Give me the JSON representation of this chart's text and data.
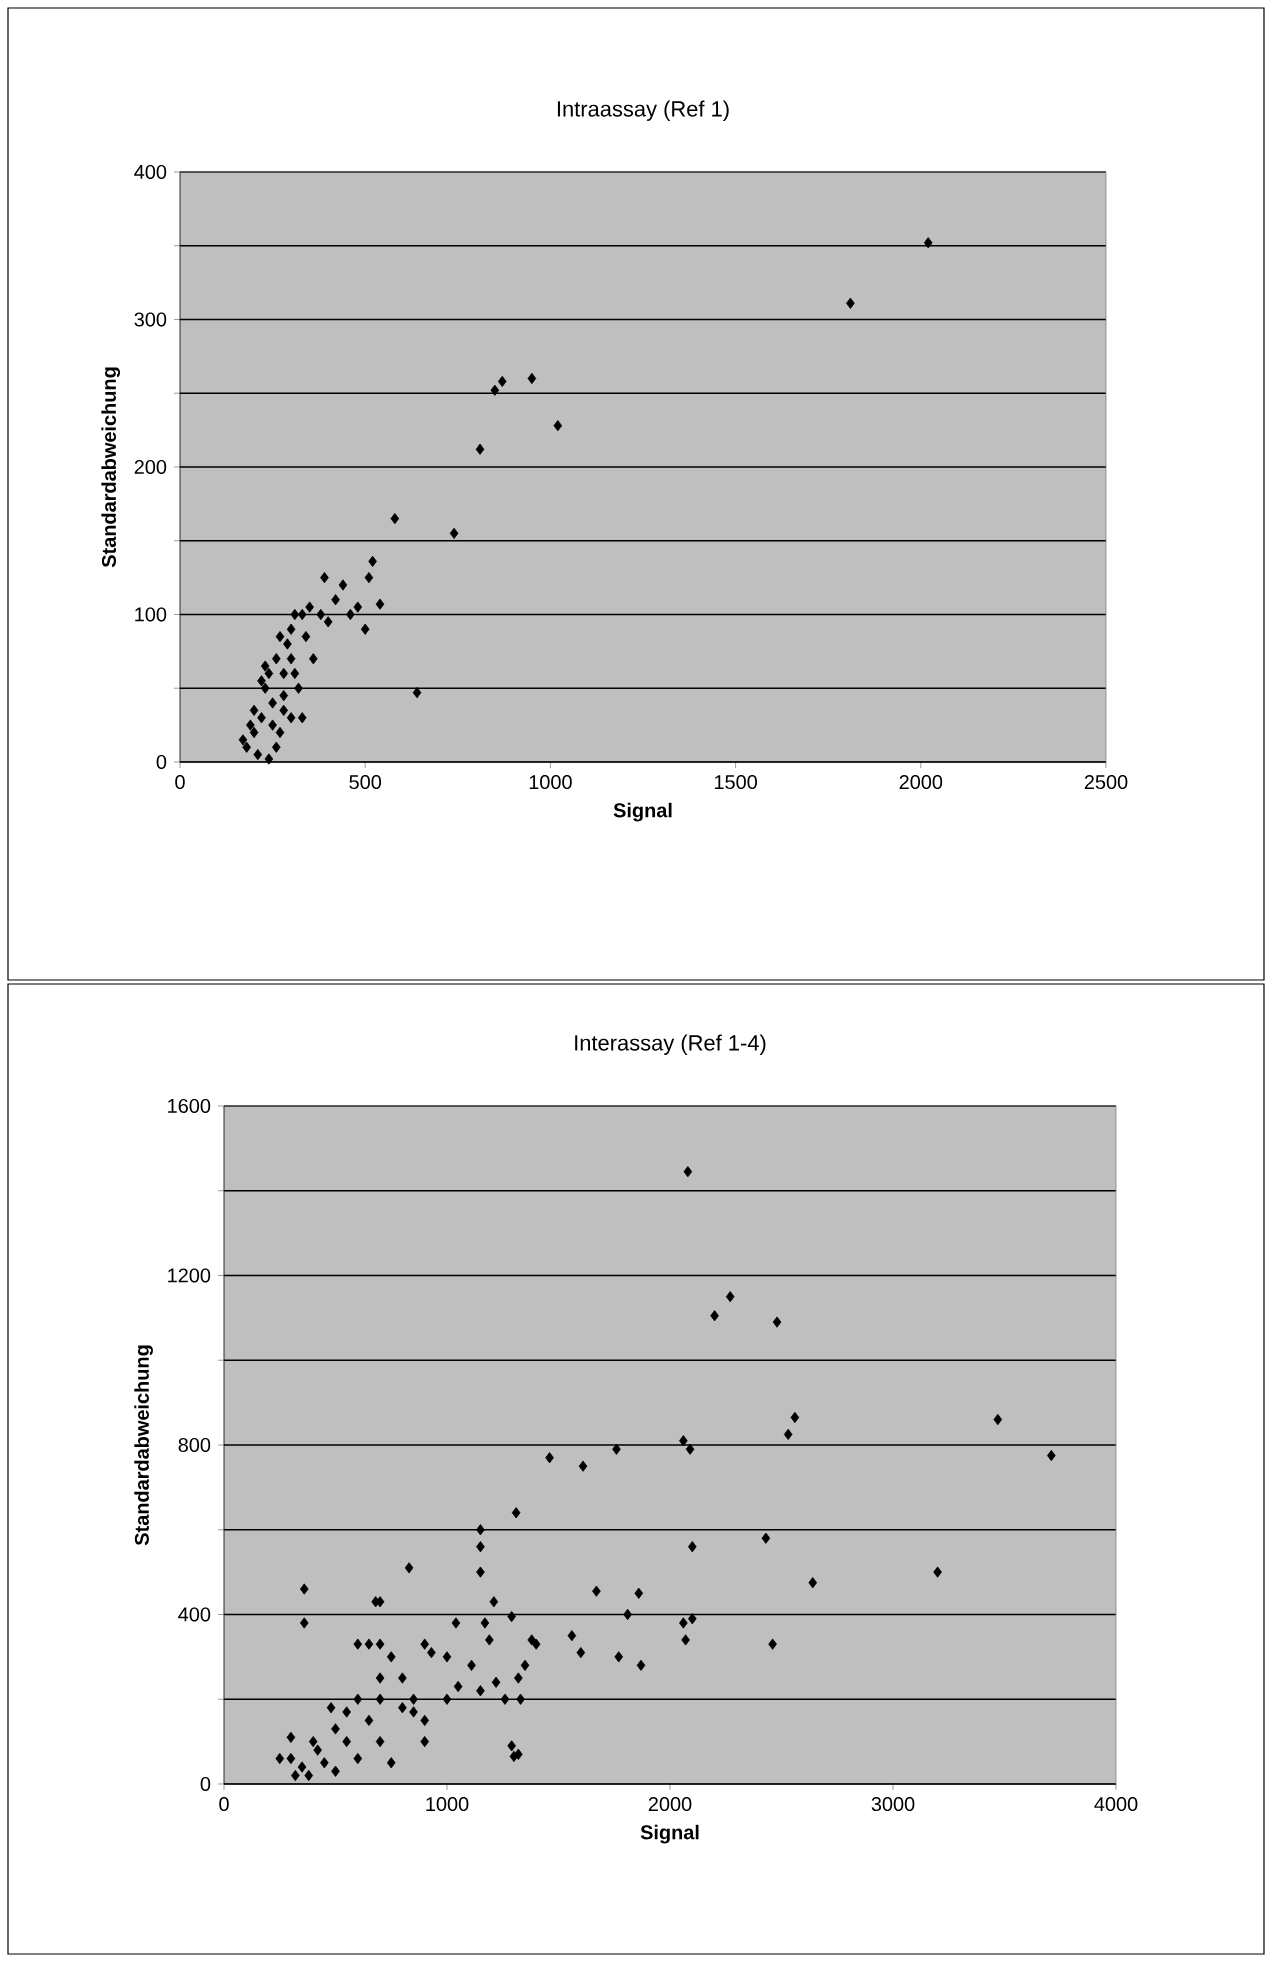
{
  "chart_data": [
    {
      "type": "scatter",
      "title": "Intraassay (Ref 1)",
      "xlabel": "Signal",
      "ylabel": "Standardabweichung",
      "color": "#000000",
      "marker": "diamond",
      "grid": "y",
      "xlim": [
        0,
        2500
      ],
      "ylim": [
        0,
        400
      ],
      "xticks": [
        0,
        500,
        1000,
        1500,
        2000,
        2500
      ],
      "yticks": [
        0,
        {
          "value": 50,
          "label": null
        },
        100,
        {
          "value": 150,
          "label": null
        },
        200,
        {
          "value": 250,
          "label": null
        },
        300,
        {
          "value": 350,
          "label": null
        },
        400
      ],
      "x": [
        2020,
        1810,
        950,
        870,
        850,
        1020,
        810,
        740,
        580,
        640,
        170,
        180,
        200,
        210,
        220,
        230,
        240,
        220,
        250,
        260,
        270,
        280,
        290,
        300,
        310,
        330,
        350,
        320,
        300,
        260,
        240,
        230,
        280,
        270,
        400,
        420,
        440,
        390,
        460,
        480,
        500,
        510,
        520,
        540,
        380,
        360,
        340,
        280,
        300,
        250,
        200,
        190,
        310,
        330
      ],
      "values": [
        352,
        311,
        260,
        258,
        252,
        228,
        212,
        155,
        165,
        47,
        15,
        10,
        20,
        5,
        30,
        50,
        60,
        55,
        40,
        70,
        20,
        60,
        80,
        90,
        100,
        100,
        105,
        50,
        30,
        10,
        2,
        65,
        45,
        85,
        95,
        110,
        120,
        125,
        100,
        105,
        90,
        125,
        136,
        107,
        100,
        70,
        85,
        35,
        70,
        25,
        35,
        25,
        60,
        30
      ]
    },
    {
      "type": "scatter",
      "title": "Interassay (Ref 1-4)",
      "xlabel": "Signal",
      "ylabel": "Standardabweichung",
      "color": "#000000",
      "marker": "diamond",
      "grid": "y",
      "xlim": [
        0,
        4000
      ],
      "ylim": [
        0,
        1600
      ],
      "xticks": [
        0,
        1000,
        2000,
        3000,
        4000
      ],
      "yticks": [
        0,
        {
          "value": 200,
          "label": null
        },
        400,
        {
          "value": 600,
          "label": null
        },
        800,
        {
          "value": 1000,
          "label": null
        },
        1200,
        {
          "value": 1400,
          "label": null
        },
        1600
      ],
      "x": [
        2080,
        2200,
        2270,
        2480,
        3470,
        3710,
        2560,
        2530,
        2060,
        2090,
        1760,
        1460,
        1610,
        2430,
        2100,
        3200,
        2640,
        1310,
        1150,
        1150,
        1150,
        1670,
        1860,
        1210,
        1810,
        2060,
        2100,
        2070,
        2460,
        1870,
        1560,
        1600,
        1770,
        1290,
        1380,
        1400,
        1350,
        1320,
        1220,
        1260,
        1330,
        1290,
        1300,
        1320,
        830,
        680,
        700,
        360,
        360,
        900,
        930,
        600,
        650,
        700,
        1040,
        1000,
        1110,
        1150,
        1190,
        1170,
        800,
        850,
        900,
        1000,
        1050,
        700,
        750,
        550,
        480,
        500,
        600,
        700,
        650,
        800,
        400,
        300,
        350,
        450,
        500,
        300,
        550,
        700,
        750,
        900,
        380,
        420,
        250,
        320,
        600,
        850
      ],
      "values": [
        1445,
        1105,
        1150,
        1090,
        860,
        775,
        865,
        825,
        810,
        790,
        790,
        770,
        750,
        580,
        560,
        500,
        475,
        640,
        600,
        560,
        500,
        455,
        450,
        430,
        400,
        380,
        390,
        340,
        330,
        280,
        350,
        310,
        300,
        395,
        340,
        330,
        280,
        250,
        240,
        200,
        200,
        90,
        65,
        70,
        510,
        430,
        430,
        460,
        380,
        330,
        310,
        330,
        330,
        330,
        380,
        300,
        280,
        220,
        340,
        380,
        250,
        200,
        150,
        200,
        230,
        250,
        300,
        170,
        180,
        130,
        200,
        200,
        150,
        180,
        100,
        60,
        40,
        50,
        30,
        110,
        100,
        100,
        50,
        100,
        20,
        80,
        60,
        20,
        60,
        170
      ]
    }
  ]
}
